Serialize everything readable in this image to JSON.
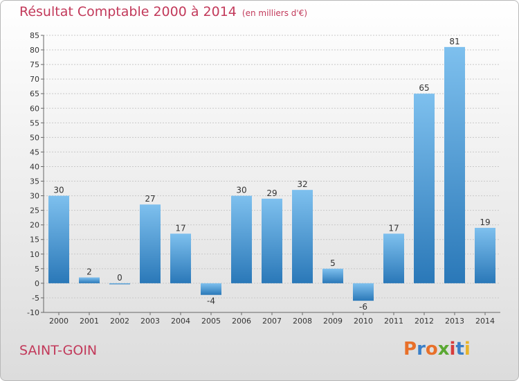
{
  "title": "Résultat Comptable 2000 à 2014",
  "subtitle": "(en milliers d'€)",
  "commune": "SAINT-GOIN",
  "logo": {
    "text": "Proxiti",
    "colors": [
      "#e8702a",
      "#3a7fc8",
      "#e8702a",
      "#5aa832",
      "#d63c3c",
      "#3a7fc8",
      "#e8b42a"
    ]
  },
  "colors": {
    "bar_light": "#7ec0ee",
    "bar_dark": "#2a78b8",
    "title": "#c2395a"
  },
  "chart_data": {
    "type": "bar",
    "categories": [
      "2000",
      "2001",
      "2002",
      "2003",
      "2004",
      "2005",
      "2006",
      "2007",
      "2008",
      "2009",
      "2010",
      "2011",
      "2012",
      "2013",
      "2014"
    ],
    "values": [
      30,
      2,
      0,
      27,
      17,
      -4,
      30,
      29,
      32,
      5,
      -6,
      17,
      65,
      81,
      19
    ],
    "ylim": [
      -10,
      85
    ],
    "yticks": [
      -10,
      -5,
      0,
      5,
      10,
      15,
      20,
      25,
      30,
      35,
      40,
      45,
      50,
      55,
      60,
      65,
      70,
      75,
      80,
      85
    ],
    "grid": true,
    "legend": "none"
  }
}
